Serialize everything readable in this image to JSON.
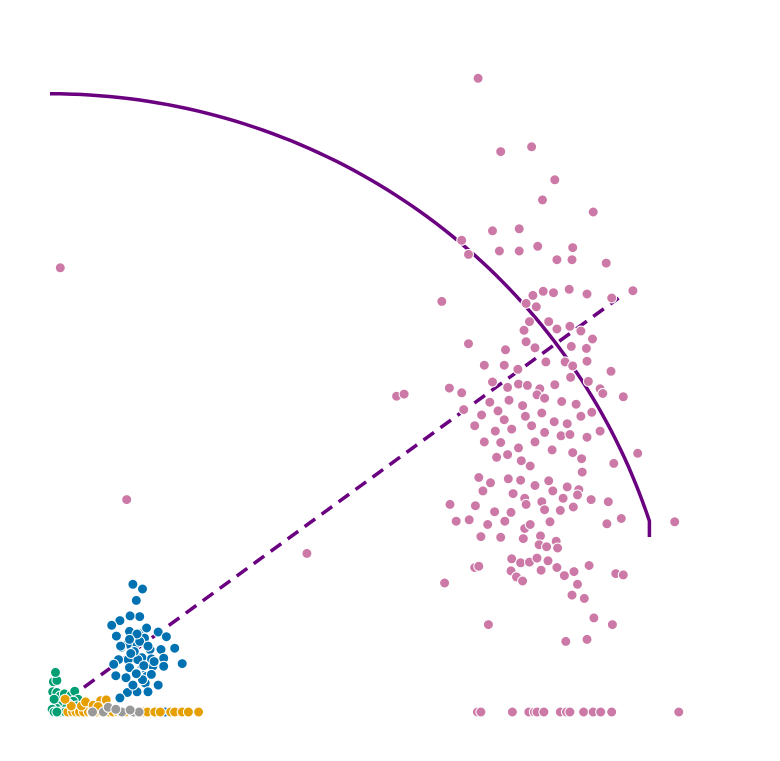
{
  "chart_data": {
    "type": "scatter",
    "title": "",
    "xlabel": "",
    "ylabel": "",
    "axes_visible": false,
    "grid": false,
    "legend": "none",
    "xlim": [
      0,
      100
    ],
    "ylim": [
      0,
      100
    ],
    "series": [
      {
        "color": "#cc79a7",
        "points": [
          [
            62.5,
            94.3
          ],
          [
            65.8,
            83.4
          ],
          [
            70.3,
            84.1
          ],
          [
            73.7,
            79.2
          ],
          [
            71.9,
            76.2
          ],
          [
            64.6,
            71.6
          ],
          [
            68.5,
            71.9
          ],
          [
            76.3,
            69.1
          ],
          [
            79.3,
            74.4
          ],
          [
            60.1,
            70.2
          ],
          [
            61.1,
            68.1
          ],
          [
            65.6,
            68.6
          ],
          [
            68.5,
            68.6
          ],
          [
            71.2,
            69.3
          ],
          [
            74.0,
            67.3
          ],
          [
            76.2,
            67.3
          ],
          [
            81.2,
            66.8
          ],
          [
            70.5,
            62.0
          ],
          [
            72.0,
            62.6
          ],
          [
            73.5,
            62.4
          ],
          [
            75.8,
            62.9
          ],
          [
            78.4,
            62.2
          ],
          [
            82.0,
            61.6
          ],
          [
            85.1,
            62.7
          ],
          [
            69.5,
            60.8
          ],
          [
            71.0,
            60.3
          ],
          [
            70.0,
            58.1
          ],
          [
            72.8,
            58.1
          ],
          [
            74.0,
            57.0
          ],
          [
            75.9,
            57.4
          ],
          [
            77.5,
            56.7
          ],
          [
            79.2,
            55.5
          ],
          [
            57.2,
            61.1
          ],
          [
            61.1,
            54.8
          ],
          [
            66.5,
            53.9
          ],
          [
            69.2,
            56.8
          ],
          [
            69.5,
            55.1
          ],
          [
            70.8,
            54.2
          ],
          [
            76.1,
            54.4
          ],
          [
            78.3,
            54.1
          ],
          [
            63.4,
            51.6
          ],
          [
            66.3,
            51.6
          ],
          [
            68.3,
            51.0
          ],
          [
            72.4,
            52.1
          ],
          [
            75.2,
            52.1
          ],
          [
            76.3,
            51.5
          ],
          [
            78.4,
            52.2
          ],
          [
            81.9,
            50.7
          ],
          [
            58.3,
            48.2
          ],
          [
            64.6,
            49.1
          ],
          [
            66.8,
            48.3
          ],
          [
            68.4,
            48.8
          ],
          [
            69.7,
            48.6
          ],
          [
            71.5,
            48.1
          ],
          [
            73.7,
            48.7
          ],
          [
            76.0,
            49.8
          ],
          [
            78.6,
            49.2
          ],
          [
            80.3,
            48.1
          ],
          [
            50.6,
            47.0
          ],
          [
            60.1,
            47.5
          ],
          [
            64.2,
            46.1
          ],
          [
            67.0,
            46.4
          ],
          [
            69.0,
            45.6
          ],
          [
            71.1,
            47.2
          ],
          [
            72.2,
            46.7
          ],
          [
            74.7,
            46.2
          ],
          [
            76.8,
            45.8
          ],
          [
            80.7,
            47.4
          ],
          [
            83.7,
            46.9
          ],
          [
            60.4,
            45.0
          ],
          [
            63.0,
            44.2
          ],
          [
            65.4,
            44.8
          ],
          [
            66.3,
            43.5
          ],
          [
            69.4,
            44.0
          ],
          [
            71.8,
            44.5
          ],
          [
            73.6,
            43.2
          ],
          [
            75.5,
            42.9
          ],
          [
            77.5,
            44.0
          ],
          [
            79.1,
            44.6
          ],
          [
            62.0,
            42.6
          ],
          [
            65.0,
            41.8
          ],
          [
            67.4,
            42.1
          ],
          [
            70.3,
            42.6
          ],
          [
            72.2,
            41.6
          ],
          [
            74.6,
            41.1
          ],
          [
            75.9,
            41.3
          ],
          [
            78.4,
            40.9
          ],
          [
            80.3,
            41.8
          ],
          [
            63.4,
            40.2
          ],
          [
            65.8,
            40.1
          ],
          [
            68.4,
            39.3
          ],
          [
            70.8,
            40.2
          ],
          [
            73.3,
            39.0
          ],
          [
            76.3,
            38.6
          ],
          [
            77.6,
            37.7
          ],
          [
            85.8,
            38.5
          ],
          [
            65.2,
            37.9
          ],
          [
            66.8,
            38.3
          ],
          [
            68.8,
            37.4
          ],
          [
            70.1,
            36.6
          ],
          [
            77.7,
            35.7
          ],
          [
            82.3,
            37.0
          ],
          [
            62.6,
            34.9
          ],
          [
            64.3,
            34.1
          ],
          [
            66.9,
            34.7
          ],
          [
            68.7,
            34.5
          ],
          [
            70.8,
            33.7
          ],
          [
            72.8,
            34.4
          ],
          [
            75.5,
            33.5
          ],
          [
            77.2,
            33.1
          ],
          [
            63.2,
            32.9
          ],
          [
            67.6,
            32.5
          ],
          [
            69.3,
            31.8
          ],
          [
            71.8,
            31.3
          ],
          [
            73.4,
            32.9
          ],
          [
            74.9,
            31.8
          ],
          [
            77.0,
            32.3
          ],
          [
            79.0,
            31.6
          ],
          [
            81.5,
            31.3
          ],
          [
            58.4,
            30.9
          ],
          [
            62.1,
            30.7
          ],
          [
            64.9,
            29.8
          ],
          [
            67.3,
            29.7
          ],
          [
            69.5,
            30.9
          ],
          [
            72.2,
            30.1
          ],
          [
            74.5,
            30.0
          ],
          [
            76.4,
            30.5
          ],
          [
            59.3,
            28.4
          ],
          [
            61.2,
            28.6
          ],
          [
            63.9,
            27.9
          ],
          [
            66.4,
            28.4
          ],
          [
            69.3,
            27.3
          ],
          [
            70.1,
            27.9
          ],
          [
            73.0,
            28.3
          ],
          [
            81.3,
            28.0
          ],
          [
            83.4,
            28.8
          ],
          [
            91.2,
            28.3
          ],
          [
            62.9,
            26.1
          ],
          [
            65.8,
            26.0
          ],
          [
            69.1,
            25.8
          ],
          [
            71.6,
            26.2
          ],
          [
            73.9,
            25.4
          ],
          [
            71.4,
            24.9
          ],
          [
            72.5,
            24.6
          ],
          [
            74.1,
            24.4
          ],
          [
            67.4,
            22.8
          ],
          [
            68.7,
            22.2
          ],
          [
            70.0,
            22.3
          ],
          [
            71.1,
            22.9
          ],
          [
            72.7,
            22.5
          ],
          [
            62.0,
            21.5
          ],
          [
            62.6,
            21.7
          ],
          [
            67.3,
            21.0
          ],
          [
            71.7,
            21.1
          ],
          [
            74.0,
            21.5
          ],
          [
            76.5,
            20.9
          ],
          [
            78.7,
            21.8
          ],
          [
            82.6,
            20.6
          ],
          [
            83.7,
            20.4
          ],
          [
            68.1,
            20.1
          ],
          [
            75.1,
            20.3
          ],
          [
            57.6,
            19.2
          ],
          [
            69.0,
            19.5
          ],
          [
            77.0,
            19.0
          ],
          [
            76.2,
            17.4
          ],
          [
            78.0,
            16.9
          ],
          [
            64.0,
            13.0
          ],
          [
            82.1,
            13.0
          ],
          [
            79.4,
            14.0
          ],
          [
            75.3,
            10.5
          ],
          [
            78.4,
            10.8
          ],
          [
            62.4,
            0
          ],
          [
            62.9,
            0
          ],
          [
            67.5,
            0
          ],
          [
            69.9,
            0
          ],
          [
            70.7,
            0
          ],
          [
            71.1,
            0
          ],
          [
            72.1,
            0
          ],
          [
            74.5,
            0
          ],
          [
            75.4,
            0
          ],
          [
            75.9,
            0
          ],
          [
            77.9,
            0
          ],
          [
            79.3,
            0
          ],
          [
            80.4,
            0
          ],
          [
            82.0,
            0
          ],
          [
            91.8,
            0
          ],
          [
            1.5,
            66.1
          ],
          [
            11.2,
            31.6
          ],
          [
            37.5,
            23.6
          ],
          [
            51.7,
            47.3
          ]
        ]
      },
      {
        "color": "#0072b2",
        "points": [
          [
            12.1,
            19.0
          ],
          [
            13.5,
            18.3
          ],
          [
            12.6,
            16.6
          ],
          [
            13.1,
            14.2
          ],
          [
            11.7,
            14.3
          ],
          [
            10.2,
            13.6
          ],
          [
            9.0,
            12.9
          ],
          [
            11.6,
            12.0
          ],
          [
            13.0,
            11.7
          ],
          [
            14.1,
            12.5
          ],
          [
            15.8,
            11.9
          ],
          [
            17.0,
            11.2
          ],
          [
            13.6,
            10.4
          ],
          [
            12.4,
            10.0
          ],
          [
            11.3,
            10.1
          ],
          [
            10.4,
            9.6
          ],
          [
            14.6,
            9.3
          ],
          [
            16.2,
            9.3
          ],
          [
            16.6,
            8.0
          ],
          [
            14.8,
            7.9
          ],
          [
            13.4,
            8.1
          ],
          [
            12.8,
            7.8
          ],
          [
            11.4,
            7.8
          ],
          [
            10.0,
            7.8
          ],
          [
            9.3,
            7.1
          ],
          [
            11.6,
            6.6
          ],
          [
            13.3,
            6.3
          ],
          [
            15.0,
            6.8
          ],
          [
            16.6,
            6.8
          ],
          [
            14.1,
            5.3
          ],
          [
            12.7,
            5.8
          ],
          [
            11.1,
            5.1
          ],
          [
            9.6,
            5.4
          ],
          [
            13.9,
            4.3
          ],
          [
            15.8,
            4.0
          ],
          [
            14.3,
            3.0
          ],
          [
            12.7,
            3.0
          ],
          [
            11.3,
            2.9
          ],
          [
            10.2,
            2.1
          ],
          [
            12.1,
            4.0
          ],
          [
            13.5,
            4.8
          ],
          [
            14.8,
            5.6
          ],
          [
            12.3,
            9.0
          ],
          [
            13.8,
            11.0
          ],
          [
            9.7,
            11.3
          ],
          [
            10.3,
            9.8
          ],
          [
            11.8,
            8.7
          ],
          [
            13.1,
            10.5
          ],
          [
            14.3,
            9.8
          ],
          [
            12.7,
            11.6
          ],
          [
            18.2,
            9.5
          ],
          [
            19.3,
            7.2
          ],
          [
            15.5,
            0
          ],
          [
            16.8,
            0
          ],
          [
            18.0,
            0
          ],
          [
            19.4,
            0
          ],
          [
            12.6,
            5.7
          ],
          [
            13.7,
            6.9
          ],
          [
            15.2,
            7.5
          ],
          [
            11.6,
            10.8
          ]
        ]
      },
      {
        "color": "#009e73",
        "points": [
          [
            0.5,
            4.5
          ],
          [
            1.0,
            4.7
          ],
          [
            0.4,
            3.0
          ],
          [
            1.0,
            2.9
          ],
          [
            1.5,
            2.4
          ],
          [
            2.1,
            2.7
          ],
          [
            3.1,
            2.5
          ],
          [
            3.6,
            3.1
          ],
          [
            4.1,
            1.9
          ],
          [
            3.4,
            1.6
          ],
          [
            2.7,
            1.2
          ],
          [
            2.0,
            1.5
          ],
          [
            1.4,
            0.9
          ],
          [
            0.9,
            0.6
          ],
          [
            0.3,
            0.4
          ],
          [
            2.4,
            0.6
          ],
          [
            3.9,
            0.9
          ],
          [
            0.6,
            1.9
          ],
          [
            0.8,
            5.9
          ],
          [
            1.5,
            0
          ],
          [
            2.2,
            0
          ],
          [
            0.6,
            0
          ],
          [
            1.0,
            0
          ]
        ]
      },
      {
        "color": "#e69f00",
        "points": [
          [
            2.6,
            0
          ],
          [
            3.3,
            0
          ],
          [
            3.8,
            0
          ],
          [
            4.3,
            0
          ],
          [
            4.9,
            0
          ],
          [
            5.6,
            0
          ],
          [
            6.1,
            0
          ],
          [
            6.8,
            0
          ],
          [
            7.5,
            0
          ],
          [
            8.1,
            0
          ],
          [
            8.6,
            0
          ],
          [
            9.2,
            0
          ],
          [
            9.9,
            0
          ],
          [
            10.3,
            0
          ],
          [
            11.0,
            0
          ],
          [
            12.3,
            0
          ],
          [
            13.6,
            0
          ],
          [
            14.2,
            0
          ],
          [
            15.3,
            0
          ],
          [
            16.1,
            0
          ],
          [
            17.6,
            0
          ],
          [
            18.2,
            0
          ],
          [
            19.3,
            0
          ],
          [
            20.2,
            0
          ],
          [
            21.7,
            0
          ],
          [
            3.1,
            0.9
          ],
          [
            4.6,
            0.9
          ],
          [
            5.2,
            1.5
          ],
          [
            6.3,
            1.0
          ],
          [
            7.4,
            1.7
          ],
          [
            8.2,
            1.8
          ],
          [
            7.0,
            0.8
          ],
          [
            2.2,
            1.9
          ]
        ]
      },
      {
        "color": "#999999",
        "points": [
          [
            6.2,
            0
          ],
          [
            7.8,
            0
          ],
          [
            10.5,
            0
          ],
          [
            12.2,
            0
          ],
          [
            13.0,
            0
          ],
          [
            8.5,
            0.7
          ],
          [
            9.6,
            0.4
          ],
          [
            11.7,
            0.3
          ]
        ]
      }
    ],
    "overlays": [
      {
        "type": "arc",
        "style": "solid",
        "color": "#6a0080",
        "center": [
          0,
          0
        ],
        "radius": 92,
        "start_angle_deg": 0,
        "end_angle_deg": 72
      },
      {
        "type": "line",
        "style": "dashed",
        "color": "#6a0080",
        "from": [
          0,
          0
        ],
        "to": [
          83,
          61.6
        ]
      }
    ]
  }
}
